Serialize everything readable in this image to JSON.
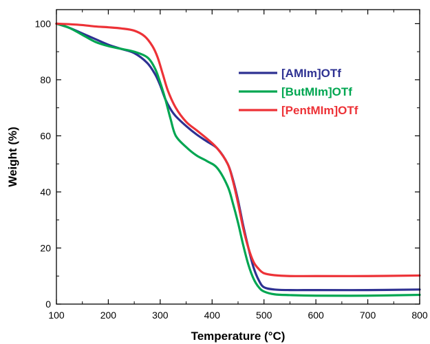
{
  "chart_data": {
    "type": "line",
    "title": "",
    "xlabel": "Temperature (°C)",
    "ylabel": "Weight (%)",
    "xlim": [
      100,
      800
    ],
    "ylim": [
      0,
      105
    ],
    "x_ticks": [
      100,
      200,
      300,
      400,
      500,
      600,
      700,
      800
    ],
    "y_ticks": [
      0,
      20,
      40,
      60,
      80,
      100
    ],
    "legend_position": "upper-right",
    "grid": false,
    "series": [
      {
        "name": "[AMIm]OTf",
        "color": "#2e3192",
        "x": [
          100,
          125,
          150,
          175,
          200,
          225,
          250,
          275,
          290,
          300,
          310,
          320,
          330,
          350,
          370,
          390,
          410,
          430,
          440,
          450,
          460,
          470,
          480,
          490,
          500,
          520,
          550,
          600,
          700,
          800
        ],
        "y": [
          100,
          98.5,
          96.5,
          94.5,
          92.5,
          91,
          89.5,
          86,
          82,
          78,
          73,
          69.5,
          67,
          63.5,
          60.5,
          58,
          55.5,
          50,
          44.5,
          37,
          28,
          20,
          13,
          8.5,
          6,
          5.2,
          5,
          5,
          5,
          5.2
        ]
      },
      {
        "name": "[ButMIm]OTf",
        "color": "#00a651",
        "x": [
          100,
          125,
          150,
          175,
          200,
          225,
          250,
          275,
          290,
          300,
          310,
          320,
          330,
          350,
          370,
          390,
          410,
          430,
          440,
          450,
          460,
          470,
          480,
          490,
          500,
          520,
          550,
          600,
          700,
          800
        ],
        "y": [
          100,
          98.5,
          96,
          93.5,
          92,
          91,
          90,
          88,
          84,
          79,
          73,
          66,
          60,
          56,
          53,
          51,
          48.5,
          42,
          36,
          29,
          21,
          14,
          9,
          6,
          4.5,
          3.5,
          3.2,
          3,
          3,
          3.3
        ]
      },
      {
        "name": "[PentMIm]OTf",
        "color": "#ed3237",
        "x": [
          100,
          125,
          150,
          175,
          200,
          225,
          250,
          270,
          285,
          295,
          305,
          315,
          330,
          350,
          370,
          390,
          410,
          430,
          440,
          450,
          460,
          470,
          480,
          490,
          500,
          520,
          550,
          600,
          700,
          800
        ],
        "y": [
          100,
          99.8,
          99.5,
          99,
          98.7,
          98.3,
          97.5,
          95.5,
          92,
          88,
          82,
          76,
          70,
          65,
          62,
          59,
          55.5,
          50,
          44,
          36,
          27,
          20,
          15,
          12.5,
          11,
          10.3,
          10,
          10,
          10,
          10.2
        ]
      }
    ]
  }
}
